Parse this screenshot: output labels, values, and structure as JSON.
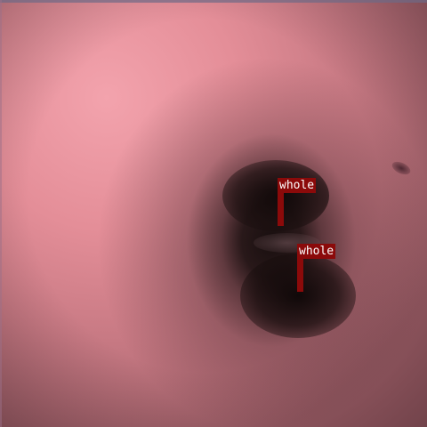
{
  "image": {
    "description_free": true,
    "annotations": [
      {
        "label": "whole",
        "color": "#8b0a0a"
      },
      {
        "label": "whole",
        "color": "#8b0a0a"
      }
    ]
  }
}
